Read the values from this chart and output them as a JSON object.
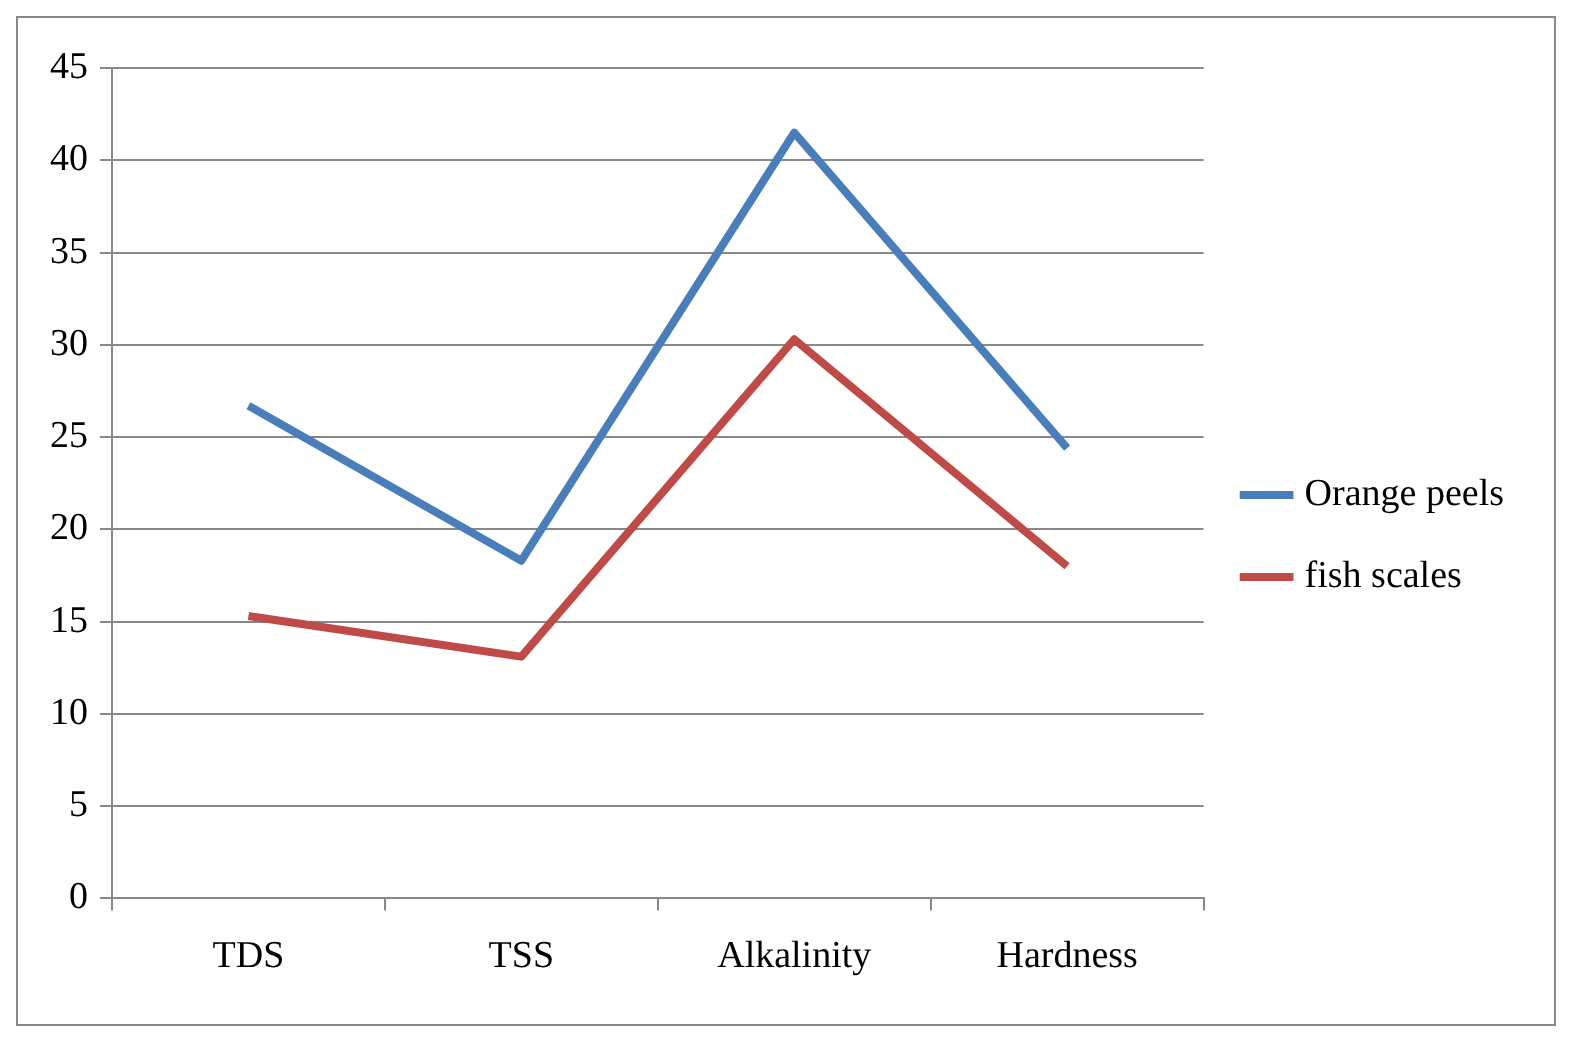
{
  "chart_data": {
    "type": "line",
    "categories": [
      "TDS",
      "TSS",
      "Alkalinity",
      "Hardness"
    ],
    "series": [
      {
        "name": "Orange peels",
        "color": "#4a7ebb",
        "values": [
          26.7,
          18.3,
          41.5,
          24.4
        ]
      },
      {
        "name": "fish scales",
        "color": "#be4b48",
        "values": [
          15.3,
          13.1,
          30.3,
          18.0
        ]
      }
    ],
    "ylim": [
      0,
      45
    ],
    "yticks": [
      0,
      5,
      10,
      15,
      20,
      25,
      30,
      35,
      40,
      45
    ],
    "grid": "y",
    "legend": "right",
    "marker": "none",
    "line_style": "solid"
  }
}
